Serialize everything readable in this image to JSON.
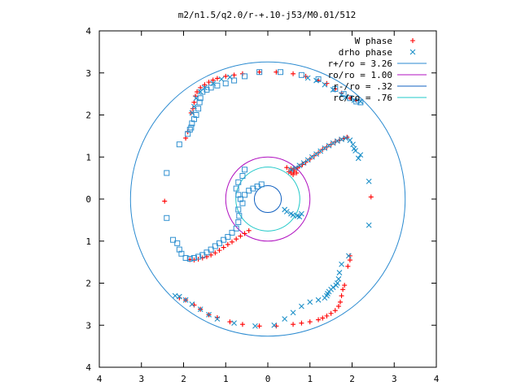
{
  "chart_data": {
    "type": "scatter",
    "title": "m2/n1.5/q2.0/r-+.10-j53/M0.01/512",
    "xlabel": "",
    "ylabel": "",
    "xlim": [
      -4,
      4
    ],
    "ylim": [
      -4,
      4
    ],
    "x_ticks": [
      -4,
      -3,
      -2,
      -1,
      0,
      1,
      2,
      3,
      4
    ],
    "y_ticks": [
      -4,
      -3,
      -2,
      -1,
      0,
      1,
      2,
      3,
      4
    ],
    "x_tick_labels": [
      "4",
      "3",
      "2",
      "1",
      "0",
      "1",
      "2",
      "3",
      "4"
    ],
    "y_tick_labels": [
      "4",
      "3",
      "2",
      "1",
      "0",
      "1",
      "2",
      "3",
      "4"
    ],
    "grid": false,
    "legend_position": "top-right",
    "colors": {
      "w_phase": "#ff0000",
      "drho_phase": "#1e90c8",
      "drho_squares": "#3090d0",
      "r_plus": "#2a8ad0",
      "r_o": "#b010c0",
      "r_minus": "#1060c0",
      "r_c": "#20c8c8"
    },
    "circles": [
      {
        "name": "r+/ro = 3.26",
        "r": 3.26,
        "color_key": "r_plus"
      },
      {
        "name": "ro/ro = 1.00",
        "r": 1.0,
        "color_key": "r_o"
      },
      {
        "name": "r-/ro = .32",
        "r": 0.32,
        "color_key": "r_minus"
      },
      {
        "name": "rc/ro = .76",
        "r": 0.76,
        "color_key": "r_c"
      }
    ],
    "series": [
      {
        "name": "W phase",
        "marker": "plus",
        "color_key": "w_phase",
        "points": [
          [
            0.45,
            0.75
          ],
          [
            0.55,
            0.72
          ],
          [
            0.62,
            0.7
          ],
          [
            0.7,
            0.74
          ],
          [
            0.75,
            0.78
          ],
          [
            0.82,
            0.82
          ],
          [
            0.9,
            0.88
          ],
          [
            1.0,
            0.95
          ],
          [
            1.1,
            1.03
          ],
          [
            1.2,
            1.1
          ],
          [
            1.3,
            1.18
          ],
          [
            1.4,
            1.24
          ],
          [
            1.5,
            1.3
          ],
          [
            1.6,
            1.36
          ],
          [
            1.7,
            1.4
          ],
          [
            1.8,
            1.44
          ],
          [
            1.88,
            1.47
          ],
          [
            -0.45,
            -0.75
          ],
          [
            -0.55,
            -0.82
          ],
          [
            -0.65,
            -0.88
          ],
          [
            -0.75,
            -0.95
          ],
          [
            -0.85,
            -1.02
          ],
          [
            -0.95,
            -1.08
          ],
          [
            -1.05,
            -1.15
          ],
          [
            -1.15,
            -1.22
          ],
          [
            -1.25,
            -1.28
          ],
          [
            -1.35,
            -1.33
          ],
          [
            -1.45,
            -1.37
          ],
          [
            -1.55,
            -1.4
          ],
          [
            -1.65,
            -1.43
          ],
          [
            -1.75,
            -1.45
          ],
          [
            -1.85,
            -1.44
          ],
          [
            -1.82,
            2.05
          ],
          [
            -1.78,
            2.15
          ],
          [
            -1.75,
            2.3
          ],
          [
            -1.72,
            2.45
          ],
          [
            -1.68,
            2.55
          ],
          [
            -1.6,
            2.65
          ],
          [
            -1.5,
            2.72
          ],
          [
            -1.4,
            2.78
          ],
          [
            -1.3,
            2.83
          ],
          [
            -1.2,
            2.87
          ],
          [
            -1.0,
            2.92
          ],
          [
            -0.8,
            2.95
          ],
          [
            -0.6,
            2.98
          ],
          [
            -0.2,
            3.02
          ],
          [
            0.2,
            3.02
          ],
          [
            0.6,
            2.98
          ],
          [
            0.9,
            2.92
          ],
          [
            1.2,
            2.82
          ],
          [
            1.4,
            2.75
          ],
          [
            1.6,
            2.62
          ],
          [
            1.75,
            2.52
          ],
          [
            1.95,
            2.4
          ],
          [
            2.1,
            2.35
          ],
          [
            -1.95,
            1.45
          ],
          [
            -1.9,
            1.6
          ],
          [
            1.82,
            -2.05
          ],
          [
            1.78,
            -2.15
          ],
          [
            1.75,
            -2.3
          ],
          [
            1.72,
            -2.45
          ],
          [
            1.68,
            -2.55
          ],
          [
            1.6,
            -2.65
          ],
          [
            1.5,
            -2.72
          ],
          [
            1.4,
            -2.78
          ],
          [
            1.3,
            -2.83
          ],
          [
            1.2,
            -2.87
          ],
          [
            1.0,
            -2.92
          ],
          [
            0.8,
            -2.95
          ],
          [
            0.6,
            -2.98
          ],
          [
            0.2,
            -3.02
          ],
          [
            -0.2,
            -3.02
          ],
          [
            -0.6,
            -2.98
          ],
          [
            -0.9,
            -2.92
          ],
          [
            -1.2,
            -2.82
          ],
          [
            -1.4,
            -2.75
          ],
          [
            -1.6,
            -2.62
          ],
          [
            -1.75,
            -2.52
          ],
          [
            -1.95,
            -2.4
          ],
          [
            -2.1,
            -2.35
          ],
          [
            1.95,
            -1.45
          ],
          [
            1.9,
            -1.6
          ],
          [
            1.95,
            -1.35
          ],
          [
            -2.45,
            -0.05
          ],
          [
            2.45,
            0.05
          ],
          [
            0.55,
            0.62
          ],
          [
            0.62,
            0.66
          ],
          [
            0.5,
            0.65
          ],
          [
            0.6,
            0.58
          ],
          [
            0.68,
            0.62
          ]
        ]
      },
      {
        "name": "drho phase",
        "marker": "cross",
        "color_key": "drho_phase",
        "points": [
          [
            0.4,
            -0.25
          ],
          [
            0.45,
            -0.3
          ],
          [
            0.55,
            -0.35
          ],
          [
            0.6,
            -0.38
          ],
          [
            0.7,
            -0.4
          ],
          [
            0.75,
            -0.42
          ],
          [
            0.8,
            -0.35
          ],
          [
            0.55,
            0.7
          ],
          [
            0.65,
            0.74
          ],
          [
            0.75,
            0.8
          ],
          [
            0.85,
            0.86
          ],
          [
            0.95,
            0.93
          ],
          [
            1.05,
            1.0
          ],
          [
            1.15,
            1.07
          ],
          [
            1.25,
            1.14
          ],
          [
            1.35,
            1.21
          ],
          [
            1.45,
            1.27
          ],
          [
            1.55,
            1.33
          ],
          [
            1.65,
            1.38
          ],
          [
            1.75,
            1.42
          ],
          [
            1.85,
            1.45
          ],
          [
            1.95,
            1.4
          ],
          [
            2.02,
            1.3
          ],
          [
            2.08,
            1.15
          ],
          [
            2.15,
            0.97
          ],
          [
            2.4,
            0.42
          ],
          [
            2.4,
            -0.62
          ],
          [
            1.75,
            -1.55
          ],
          [
            1.7,
            -1.75
          ],
          [
            1.68,
            -1.9
          ],
          [
            1.65,
            -2.0
          ],
          [
            1.62,
            -2.05
          ],
          [
            1.55,
            -2.1
          ],
          [
            1.5,
            -2.15
          ],
          [
            1.45,
            -2.2
          ],
          [
            1.42,
            -2.25
          ],
          [
            1.4,
            -2.3
          ],
          [
            1.35,
            -2.35
          ],
          [
            1.2,
            -2.4
          ],
          [
            1.0,
            -2.45
          ],
          [
            0.8,
            -2.55
          ],
          [
            0.6,
            -2.7
          ],
          [
            0.4,
            -2.85
          ],
          [
            0.15,
            -3.0
          ],
          [
            -0.3,
            -3.02
          ],
          [
            -0.8,
            -2.95
          ],
          [
            -1.2,
            -2.85
          ],
          [
            -1.4,
            -2.75
          ],
          [
            -1.6,
            -2.62
          ],
          [
            -1.8,
            -2.5
          ],
          [
            -1.95,
            -2.4
          ],
          [
            -2.1,
            -2.32
          ],
          [
            -2.2,
            -2.3
          ],
          [
            -1.8,
            2.05
          ],
          [
            -1.75,
            2.2
          ],
          [
            -1.7,
            2.4
          ],
          [
            -1.6,
            2.55
          ],
          [
            -1.5,
            2.65
          ],
          [
            -1.3,
            2.75
          ],
          [
            -1.1,
            2.85
          ],
          [
            -0.9,
            2.9
          ],
          [
            0.95,
            2.88
          ],
          [
            1.15,
            2.82
          ],
          [
            1.35,
            2.72
          ],
          [
            1.55,
            2.6
          ],
          [
            1.75,
            2.48
          ],
          [
            1.85,
            2.42
          ],
          [
            2.05,
            2.35
          ],
          [
            2.2,
            2.32
          ],
          [
            2.05,
            1.2
          ],
          [
            2.2,
            1.05
          ],
          [
            1.92,
            -1.35
          ]
        ]
      },
      {
        "name": "",
        "marker": "square",
        "color_key": "drho_squares",
        "points": [
          [
            -0.55,
            0.7
          ],
          [
            -0.6,
            0.55
          ],
          [
            -0.7,
            0.4
          ],
          [
            -0.75,
            0.25
          ],
          [
            -0.7,
            0.1
          ],
          [
            -0.65,
            0.0
          ],
          [
            -0.6,
            -0.1
          ],
          [
            -0.7,
            -0.25
          ],
          [
            -0.68,
            -0.4
          ],
          [
            -0.7,
            -0.55
          ],
          [
            -0.75,
            -0.7
          ],
          [
            -0.85,
            -0.8
          ],
          [
            -0.95,
            -0.9
          ],
          [
            -1.05,
            -0.97
          ],
          [
            -1.15,
            -1.05
          ],
          [
            -1.25,
            -1.12
          ],
          [
            -1.35,
            -1.2
          ],
          [
            -1.45,
            -1.27
          ],
          [
            -1.55,
            -1.33
          ],
          [
            -1.65,
            -1.37
          ],
          [
            -1.75,
            -1.4
          ],
          [
            -1.85,
            -1.42
          ],
          [
            -1.95,
            -1.4
          ],
          [
            -2.05,
            -1.3
          ],
          [
            -2.1,
            -1.2
          ],
          [
            -2.15,
            -1.05
          ],
          [
            -2.25,
            -0.97
          ],
          [
            -2.4,
            -0.45
          ],
          [
            -2.4,
            0.62
          ],
          [
            -2.1,
            1.3
          ],
          [
            -1.9,
            1.55
          ],
          [
            -1.85,
            1.65
          ],
          [
            -1.82,
            1.7
          ],
          [
            -1.8,
            1.8
          ],
          [
            -1.75,
            1.9
          ],
          [
            -1.7,
            2.0
          ],
          [
            -1.65,
            2.15
          ],
          [
            -1.62,
            2.3
          ],
          [
            -1.6,
            2.4
          ],
          [
            -1.55,
            2.55
          ],
          [
            -1.45,
            2.6
          ],
          [
            -1.35,
            2.65
          ],
          [
            -1.2,
            2.7
          ],
          [
            -1.0,
            2.75
          ],
          [
            -0.8,
            2.82
          ],
          [
            -0.55,
            2.92
          ],
          [
            -0.2,
            3.02
          ],
          [
            0.3,
            3.02
          ],
          [
            0.8,
            2.95
          ],
          [
            1.2,
            2.85
          ],
          [
            1.6,
            2.62
          ],
          [
            1.8,
            2.5
          ],
          [
            1.95,
            2.4
          ],
          [
            2.1,
            2.32
          ],
          [
            2.2,
            2.3
          ],
          [
            -0.15,
            0.35
          ],
          [
            -0.25,
            0.3
          ],
          [
            -0.35,
            0.25
          ],
          [
            -0.45,
            0.2
          ],
          [
            -0.55,
            0.1
          ]
        ]
      }
    ],
    "legend": [
      {
        "label": "W phase",
        "symbol": "plus",
        "color_key": "w_phase"
      },
      {
        "label": "drho phase",
        "symbol": "cross",
        "color_key": "drho_phase"
      },
      {
        "label": "r+/ro = 3.26",
        "symbol": "line",
        "color_key": "r_plus"
      },
      {
        "label": "ro/ro = 1.00",
        "symbol": "line",
        "color_key": "r_o"
      },
      {
        "label": "r-/ro = .32",
        "symbol": "line",
        "color_key": "r_minus"
      },
      {
        "label": "rc/ro = .76",
        "symbol": "line",
        "color_key": "r_c"
      }
    ]
  }
}
